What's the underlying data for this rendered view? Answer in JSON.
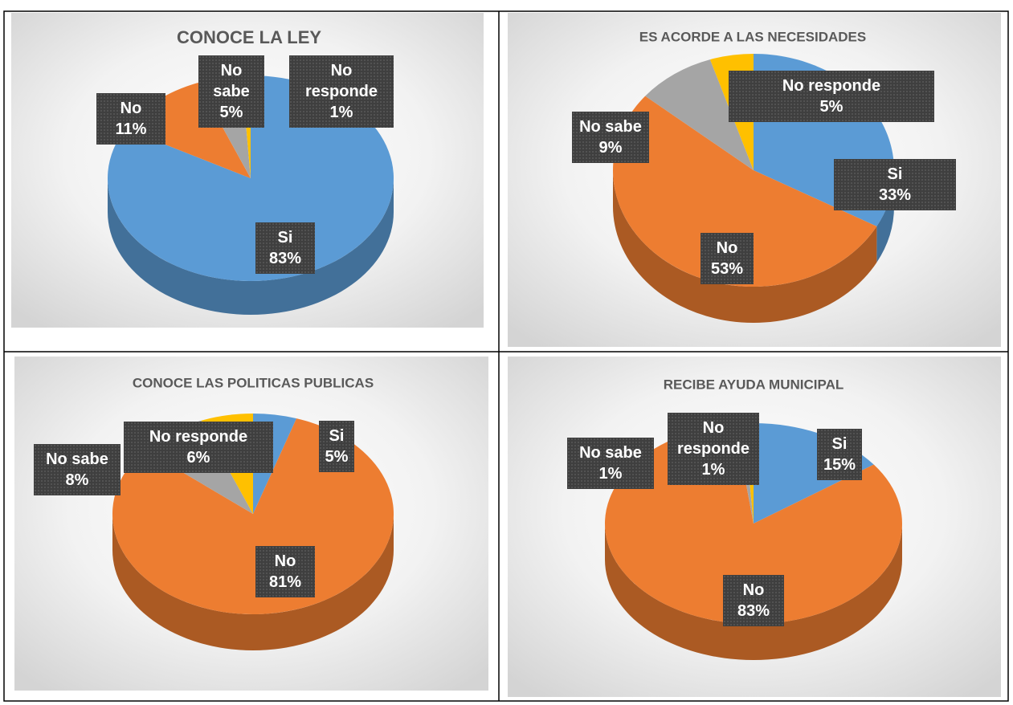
{
  "chart_data": [
    {
      "type": "pie",
      "title": "CONOCE LA LEY",
      "categories": [
        "Si",
        "No",
        "No sabe",
        "No responde"
      ],
      "values": [
        83,
        11,
        5,
        1
      ],
      "value_labels": [
        "83%",
        "11%",
        "5%",
        "1%"
      ],
      "colors": [
        "#5b9bd5",
        "#ed7d31",
        "#a5a5a5",
        "#ffc000"
      ]
    },
    {
      "type": "pie",
      "title": "ES ACORDE A LAS NECESIDADES",
      "categories": [
        "Si",
        "No",
        "No sabe",
        "No responde"
      ],
      "values": [
        33,
        53,
        9,
        5
      ],
      "value_labels": [
        "33%",
        "53%",
        "9%",
        "5%"
      ],
      "colors": [
        "#5b9bd5",
        "#ed7d31",
        "#a5a5a5",
        "#ffc000"
      ]
    },
    {
      "type": "pie",
      "title": "CONOCE LAS POLITICAS PUBLICAS",
      "categories": [
        "Si",
        "No",
        "No sabe",
        "No responde"
      ],
      "values": [
        5,
        81,
        8,
        6
      ],
      "value_labels": [
        "5%",
        "81%",
        "8%",
        "6%"
      ],
      "colors": [
        "#5b9bd5",
        "#ed7d31",
        "#a5a5a5",
        "#ffc000"
      ]
    },
    {
      "type": "pie",
      "title": "RECIBE AYUDA MUNICIPAL",
      "categories": [
        "Si",
        "No",
        "No sabe",
        "No responde"
      ],
      "values": [
        15,
        83,
        1,
        1
      ],
      "value_labels": [
        "15%",
        "83%",
        "1%",
        "1%"
      ],
      "colors": [
        "#5b9bd5",
        "#ed7d31",
        "#a5a5a5",
        "#ffc000"
      ]
    }
  ]
}
